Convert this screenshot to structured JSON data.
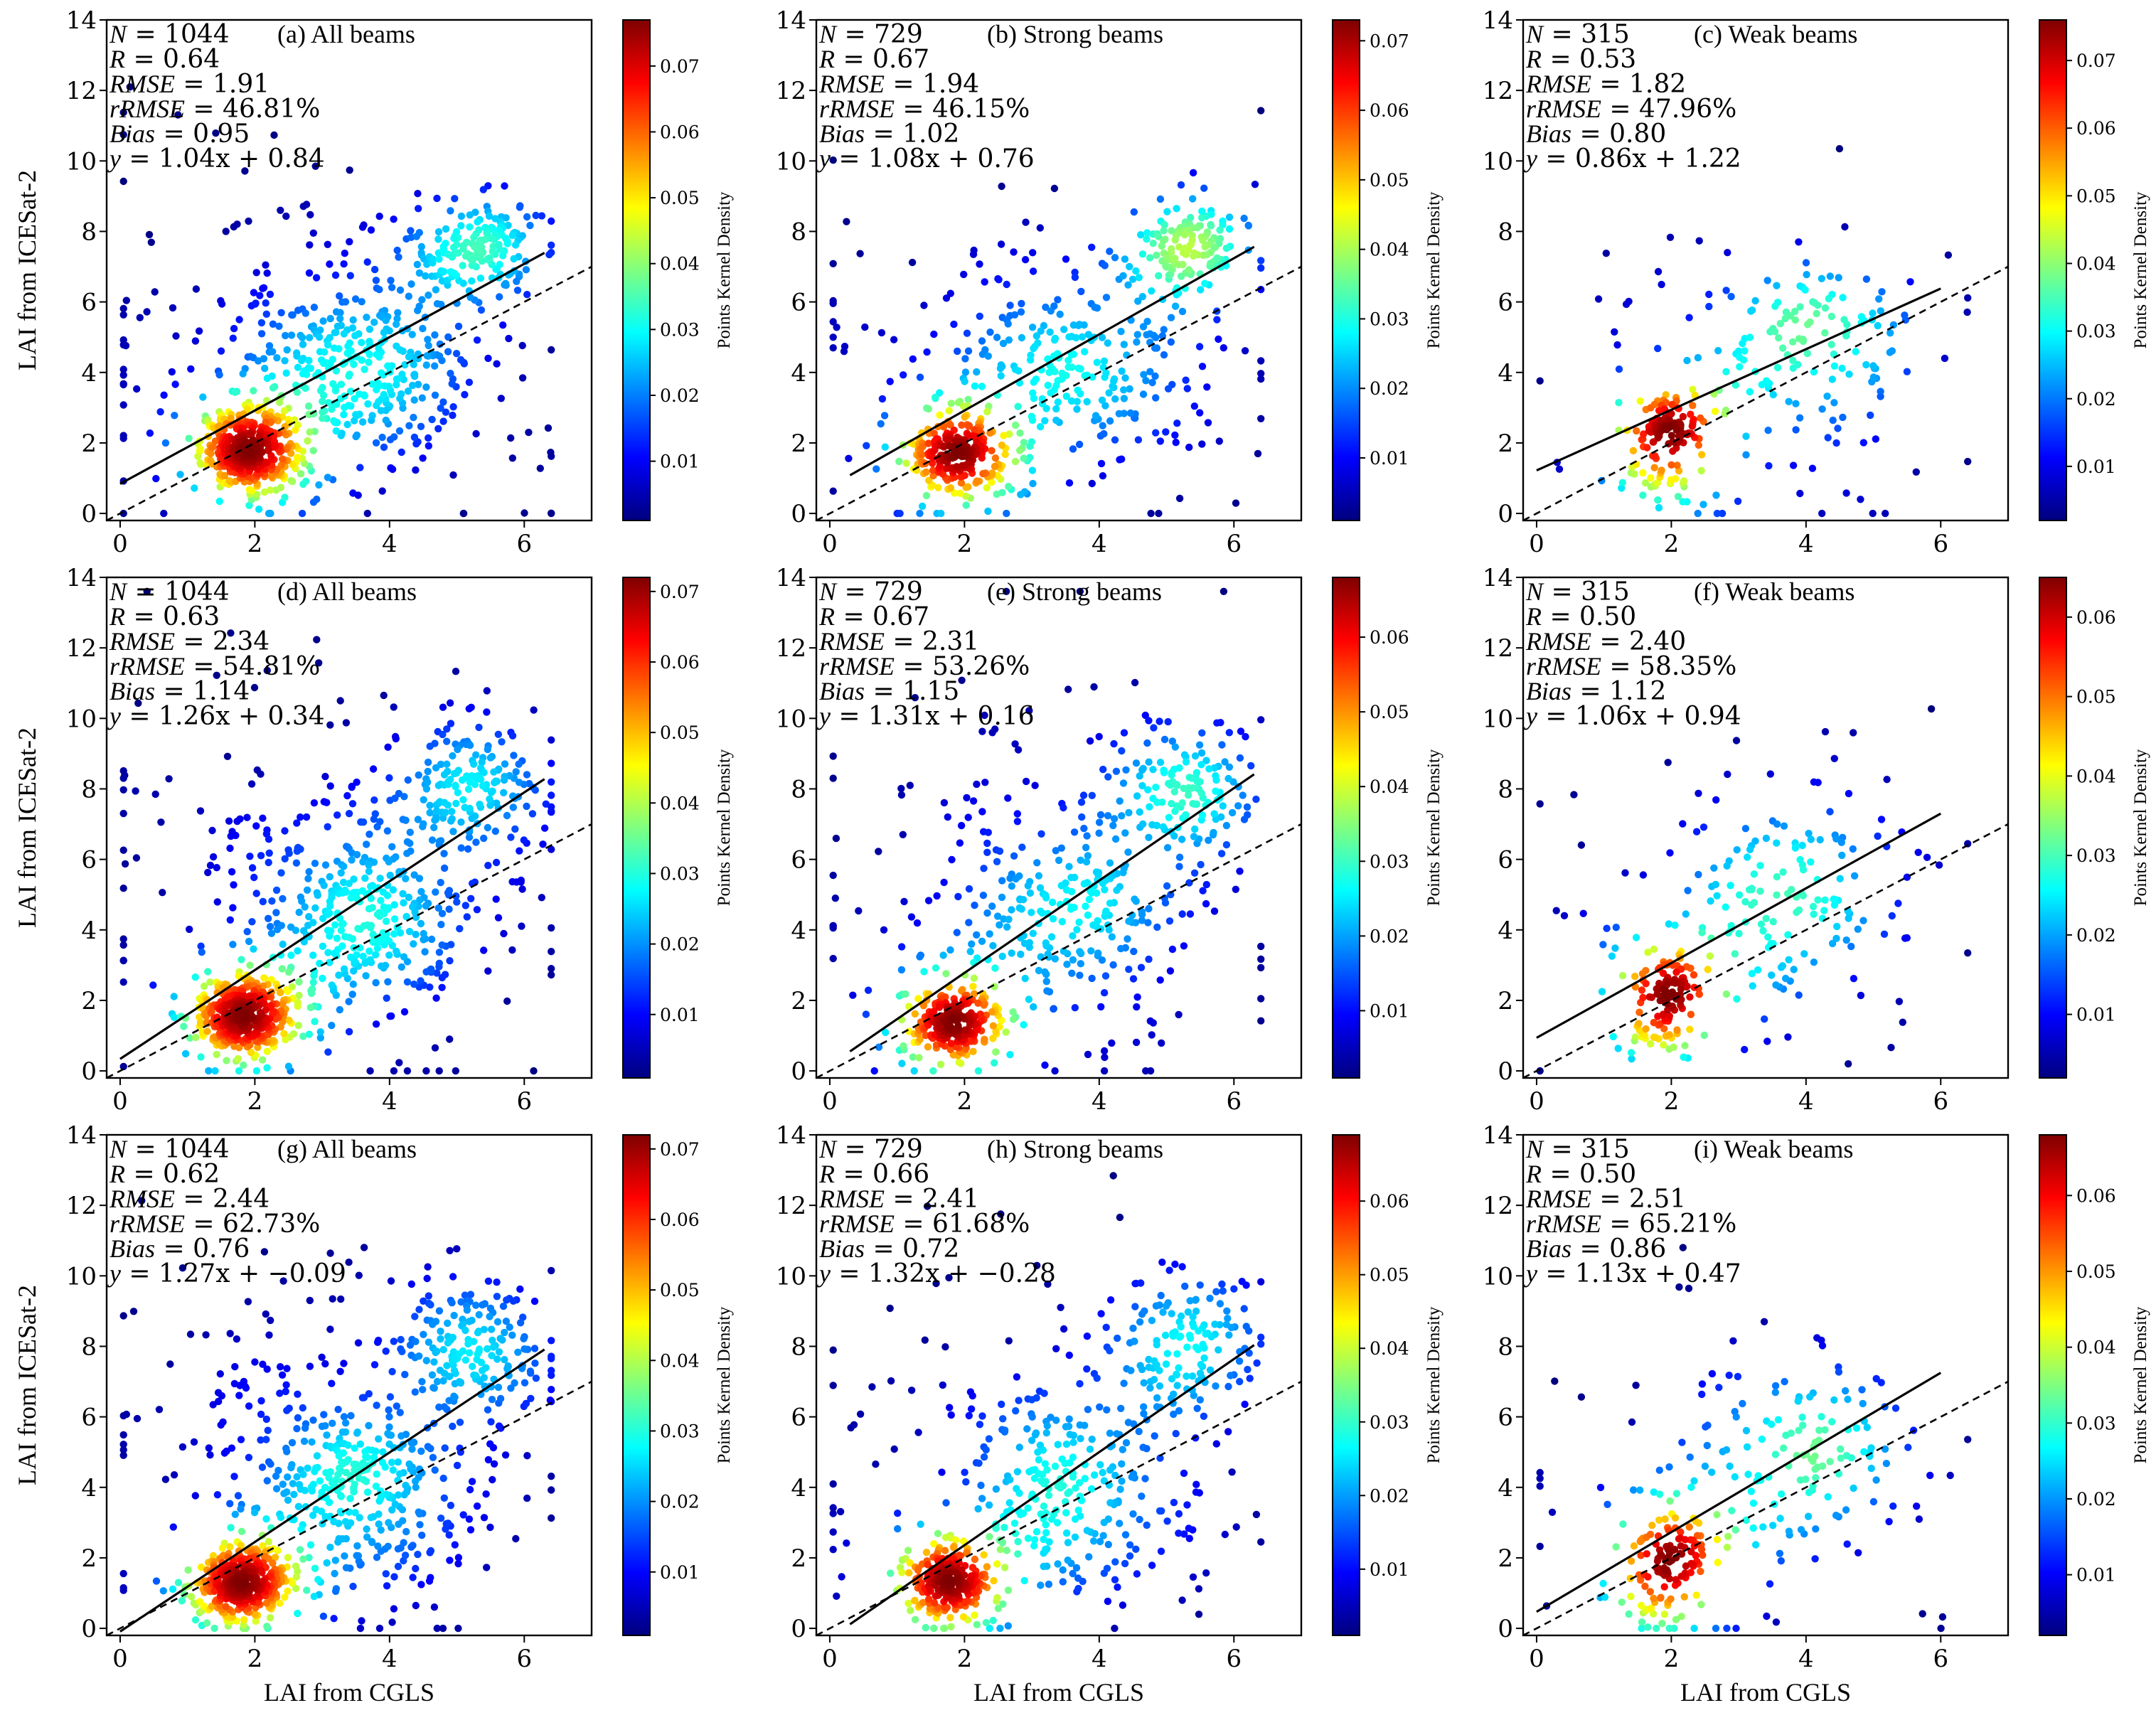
{
  "chart_data": [
    {
      "type": "scatter",
      "panel": "a",
      "title": "(a) All beams",
      "ylabel": "LAI from ICESat-2",
      "xlabel": "",
      "xlim": [
        -0.2,
        7
      ],
      "ylim": [
        -0.2,
        14
      ],
      "xticks": [
        "0",
        "2",
        "4",
        "6"
      ],
      "yticks": [
        "0",
        "2",
        "4",
        "6",
        "8",
        "10",
        "12",
        "14"
      ],
      "stats": {
        "n": "1044",
        "r": "0.64",
        "rmse": "1.91",
        "rrmse": "46.81%",
        "bias": "0.95",
        "equation": "1.04x + 0.84"
      },
      "fit": {
        "slope": 1.04,
        "intercept": 0.84,
        "x_range": [
          0,
          6.3
        ]
      },
      "colorbar": {
        "label": "Points Kernel Density",
        "ticks": [
          "0.01",
          "0.02",
          "0.03",
          "0.04",
          "0.05",
          "0.06",
          "0.07"
        ],
        "min": 0.001,
        "max": 0.077
      },
      "clusters": [
        {
          "cx": 1.9,
          "cy": 1.8,
          "sx": 0.35,
          "sy": 0.55,
          "n": 380
        },
        {
          "cx": 5.3,
          "cy": 7.5,
          "sx": 0.5,
          "sy": 0.7,
          "n": 170
        },
        {
          "cx": 3.6,
          "cy": 4.0,
          "sx": 0.9,
          "sy": 1.3,
          "n": 260
        },
        {
          "cx": 3.0,
          "cy": 4.5,
          "sx": 1.8,
          "sy": 2.6,
          "n": 234
        }
      ]
    },
    {
      "type": "scatter",
      "panel": "b",
      "title": "(b) Strong beams",
      "ylabel": "",
      "xlabel": "",
      "xlim": [
        -0.2,
        7
      ],
      "ylim": [
        -0.2,
        14
      ],
      "xticks": [
        "0",
        "2",
        "4",
        "6"
      ],
      "yticks": [
        "0",
        "2",
        "4",
        "6",
        "8",
        "10",
        "12",
        "14"
      ],
      "stats": {
        "n": "729",
        "r": "0.67",
        "rmse": "1.94",
        "rrmse": "46.15%",
        "bias": "1.02",
        "equation": "1.08x + 0.76"
      },
      "fit": {
        "slope": 1.08,
        "intercept": 0.76,
        "x_range": [
          0.3,
          6.3
        ]
      },
      "colorbar": {
        "label": "Points Kernel Density",
        "ticks": [
          "0.01",
          "0.02",
          "0.03",
          "0.04",
          "0.05",
          "0.06",
          "0.07"
        ],
        "min": 0.001,
        "max": 0.073
      },
      "clusters": [
        {
          "cx": 1.9,
          "cy": 1.7,
          "sx": 0.35,
          "sy": 0.55,
          "n": 250
        },
        {
          "cx": 5.4,
          "cy": 7.6,
          "sx": 0.45,
          "sy": 0.7,
          "n": 140
        },
        {
          "cx": 3.6,
          "cy": 4.2,
          "sx": 0.9,
          "sy": 1.3,
          "n": 180
        },
        {
          "cx": 3.0,
          "cy": 4.5,
          "sx": 1.8,
          "sy": 2.6,
          "n": 159
        }
      ]
    },
    {
      "type": "scatter",
      "panel": "c",
      "title": "(c) Weak beams",
      "ylabel": "",
      "xlabel": "",
      "xlim": [
        -0.2,
        7
      ],
      "ylim": [
        -0.2,
        14
      ],
      "xticks": [
        "0",
        "2",
        "4",
        "6"
      ],
      "yticks": [
        "0",
        "2",
        "4",
        "6",
        "8",
        "10",
        "12",
        "14"
      ],
      "stats": {
        "n": "315",
        "r": "0.53",
        "rmse": "1.82",
        "rrmse": "47.96%",
        "bias": "0.80",
        "equation": "0.86x + 1.22"
      },
      "fit": {
        "slope": 0.86,
        "intercept": 1.22,
        "x_range": [
          0,
          6
        ]
      },
      "colorbar": {
        "label": "Points Kernel Density",
        "ticks": [
          "0.01",
          "0.02",
          "0.03",
          "0.04",
          "0.05",
          "0.06",
          "0.07"
        ],
        "min": 0.002,
        "max": 0.076
      },
      "clusters": [
        {
          "cx": 2.0,
          "cy": 2.5,
          "sx": 0.25,
          "sy": 0.5,
          "n": 90
        },
        {
          "cx": 1.8,
          "cy": 1.0,
          "sx": 0.3,
          "sy": 0.5,
          "n": 40
        },
        {
          "cx": 4.0,
          "cy": 5.0,
          "sx": 0.8,
          "sy": 1.2,
          "n": 100
        },
        {
          "cx": 3.2,
          "cy": 4.0,
          "sx": 1.5,
          "sy": 2.3,
          "n": 85
        }
      ]
    },
    {
      "type": "scatter",
      "panel": "d",
      "title": "(d) All beams",
      "ylabel": "LAI from ICESat-2",
      "xlabel": "",
      "xlim": [
        -0.2,
        7
      ],
      "ylim": [
        -0.2,
        14
      ],
      "xticks": [
        "0",
        "2",
        "4",
        "6"
      ],
      "yticks": [
        "0",
        "2",
        "4",
        "6",
        "8",
        "10",
        "12",
        "14"
      ],
      "stats": {
        "n": "1044",
        "r": "0.63",
        "rmse": "2.34",
        "rrmse": "54.81%",
        "bias": "1.14",
        "equation": "1.26x + 0.34"
      },
      "fit": {
        "slope": 1.26,
        "intercept": 0.34,
        "x_range": [
          0,
          6.3
        ]
      },
      "colorbar": {
        "label": "Points Kernel Density",
        "ticks": [
          "0.01",
          "0.02",
          "0.03",
          "0.04",
          "0.05",
          "0.06",
          "0.07"
        ],
        "min": 0.001,
        "max": 0.072
      },
      "clusters": [
        {
          "cx": 1.8,
          "cy": 1.5,
          "sx": 0.35,
          "sy": 0.55,
          "n": 380
        },
        {
          "cx": 5.2,
          "cy": 8.0,
          "sx": 0.6,
          "sy": 1.0,
          "n": 170
        },
        {
          "cx": 3.6,
          "cy": 4.3,
          "sx": 0.9,
          "sy": 1.5,
          "n": 260
        },
        {
          "cx": 3.0,
          "cy": 5.0,
          "sx": 1.8,
          "sy": 2.8,
          "n": 234
        }
      ]
    },
    {
      "type": "scatter",
      "panel": "e",
      "title": "(e) Strong beams",
      "ylabel": "",
      "xlabel": "",
      "xlim": [
        -0.2,
        7
      ],
      "ylim": [
        -0.2,
        14
      ],
      "xticks": [
        "0",
        "2",
        "4",
        "6"
      ],
      "yticks": [
        "0",
        "2",
        "4",
        "6",
        "8",
        "10",
        "12",
        "14"
      ],
      "stats": {
        "n": "729",
        "r": "0.67",
        "rmse": "2.31",
        "rrmse": "53.26%",
        "bias": "1.15",
        "equation": "1.31x + 0.16"
      },
      "fit": {
        "slope": 1.31,
        "intercept": 0.16,
        "x_range": [
          0.3,
          6.3
        ]
      },
      "colorbar": {
        "label": "Points Kernel Density",
        "ticks": [
          "0.01",
          "0.02",
          "0.03",
          "0.04",
          "0.05",
          "0.06"
        ],
        "min": 0.001,
        "max": 0.068
      },
      "clusters": [
        {
          "cx": 1.8,
          "cy": 1.4,
          "sx": 0.35,
          "sy": 0.55,
          "n": 250
        },
        {
          "cx": 5.3,
          "cy": 8.0,
          "sx": 0.55,
          "sy": 1.0,
          "n": 140
        },
        {
          "cx": 3.6,
          "cy": 4.3,
          "sx": 0.9,
          "sy": 1.5,
          "n": 180
        },
        {
          "cx": 3.0,
          "cy": 5.0,
          "sx": 1.8,
          "sy": 2.8,
          "n": 159
        }
      ]
    },
    {
      "type": "scatter",
      "panel": "f",
      "title": "(f) Weak beams",
      "ylabel": "",
      "xlabel": "",
      "xlim": [
        -0.2,
        7
      ],
      "ylim": [
        -0.2,
        14
      ],
      "xticks": [
        "0",
        "2",
        "4",
        "6"
      ],
      "yticks": [
        "0",
        "2",
        "4",
        "6",
        "8",
        "10",
        "12",
        "14"
      ],
      "stats": {
        "n": "315",
        "r": "0.50",
        "rmse": "2.40",
        "rrmse": "58.35%",
        "bias": "1.12",
        "equation": "1.06x + 0.94"
      },
      "fit": {
        "slope": 1.06,
        "intercept": 0.94,
        "x_range": [
          0,
          6
        ]
      },
      "colorbar": {
        "label": "Points Kernel Density",
        "ticks": [
          "0.01",
          "0.02",
          "0.03",
          "0.04",
          "0.05",
          "0.06"
        ],
        "min": 0.002,
        "max": 0.065
      },
      "clusters": [
        {
          "cx": 2.0,
          "cy": 2.4,
          "sx": 0.25,
          "sy": 0.5,
          "n": 90
        },
        {
          "cx": 1.8,
          "cy": 0.9,
          "sx": 0.3,
          "sy": 0.5,
          "n": 40
        },
        {
          "cx": 4.0,
          "cy": 5.0,
          "sx": 0.8,
          "sy": 1.5,
          "n": 100
        },
        {
          "cx": 3.2,
          "cy": 4.5,
          "sx": 1.5,
          "sy": 2.6,
          "n": 85
        }
      ]
    },
    {
      "type": "scatter",
      "panel": "g",
      "title": "(g) All beams",
      "ylabel": "LAI from ICESat-2",
      "xlabel": "LAI from CGLS",
      "xlim": [
        -0.2,
        7
      ],
      "ylim": [
        -0.2,
        14
      ],
      "xticks": [
        "0",
        "2",
        "4",
        "6"
      ],
      "yticks": [
        "0",
        "2",
        "4",
        "6",
        "8",
        "10",
        "12",
        "14"
      ],
      "stats": {
        "n": "1044",
        "r": "0.62",
        "rmse": "2.44",
        "rrmse": "62.73%",
        "bias": "0.76",
        "equation": "1.27x + −0.09"
      },
      "fit": {
        "slope": 1.27,
        "intercept": -0.09,
        "x_range": [
          0,
          6.3
        ]
      },
      "colorbar": {
        "label": "Points Kernel Density",
        "ticks": [
          "0.01",
          "0.02",
          "0.03",
          "0.04",
          "0.05",
          "0.06",
          "0.07"
        ],
        "min": 0.001,
        "max": 0.072
      },
      "clusters": [
        {
          "cx": 1.8,
          "cy": 1.3,
          "sx": 0.35,
          "sy": 0.55,
          "n": 380
        },
        {
          "cx": 5.3,
          "cy": 8.0,
          "sx": 0.6,
          "sy": 1.0,
          "n": 170
        },
        {
          "cx": 3.6,
          "cy": 4.0,
          "sx": 0.9,
          "sy": 1.5,
          "n": 260
        },
        {
          "cx": 3.0,
          "cy": 4.6,
          "sx": 1.8,
          "sy": 2.8,
          "n": 234
        }
      ]
    },
    {
      "type": "scatter",
      "panel": "h",
      "title": "(h) Strong beams",
      "ylabel": "",
      "xlabel": "LAI from CGLS",
      "xlim": [
        -0.2,
        7
      ],
      "ylim": [
        -0.2,
        14
      ],
      "xticks": [
        "0",
        "2",
        "4",
        "6"
      ],
      "yticks": [
        "0",
        "2",
        "4",
        "6",
        "8",
        "10",
        "12",
        "14"
      ],
      "stats": {
        "n": "729",
        "r": "0.66",
        "rmse": "2.41",
        "rrmse": "61.68%",
        "bias": "0.72",
        "equation": "1.32x + −0.28"
      },
      "fit": {
        "slope": 1.32,
        "intercept": -0.28,
        "x_range": [
          0.3,
          6.3
        ]
      },
      "colorbar": {
        "label": "Points Kernel Density",
        "ticks": [
          "0.01",
          "0.02",
          "0.03",
          "0.04",
          "0.05",
          "0.06"
        ],
        "min": 0.001,
        "max": 0.069
      },
      "clusters": [
        {
          "cx": 1.8,
          "cy": 1.2,
          "sx": 0.35,
          "sy": 0.55,
          "n": 250
        },
        {
          "cx": 5.3,
          "cy": 8.0,
          "sx": 0.55,
          "sy": 1.0,
          "n": 140
        },
        {
          "cx": 3.6,
          "cy": 4.0,
          "sx": 0.9,
          "sy": 1.5,
          "n": 180
        },
        {
          "cx": 3.0,
          "cy": 4.6,
          "sx": 1.8,
          "sy": 2.8,
          "n": 159
        }
      ]
    },
    {
      "type": "scatter",
      "panel": "i",
      "title": "(i) Weak beams",
      "ylabel": "",
      "xlabel": "LAI from CGLS",
      "xlim": [
        -0.2,
        7
      ],
      "ylim": [
        -0.2,
        14
      ],
      "xticks": [
        "0",
        "2",
        "4",
        "6"
      ],
      "yticks": [
        "0",
        "2",
        "4",
        "6",
        "8",
        "10",
        "12",
        "14"
      ],
      "stats": {
        "n": "315",
        "r": "0.50",
        "rmse": "2.51",
        "rrmse": "65.21%",
        "bias": "0.86",
        "equation": "1.13x + 0.47"
      },
      "fit": {
        "slope": 1.13,
        "intercept": 0.47,
        "x_range": [
          0,
          6
        ]
      },
      "colorbar": {
        "label": "Points Kernel Density",
        "ticks": [
          "0.01",
          "0.02",
          "0.03",
          "0.04",
          "0.05",
          "0.06"
        ],
        "min": 0.002,
        "max": 0.068
      },
      "clusters": [
        {
          "cx": 2.0,
          "cy": 2.1,
          "sx": 0.25,
          "sy": 0.5,
          "n": 90
        },
        {
          "cx": 1.8,
          "cy": 0.8,
          "sx": 0.3,
          "sy": 0.5,
          "n": 40
        },
        {
          "cx": 4.0,
          "cy": 5.0,
          "sx": 0.8,
          "sy": 1.5,
          "n": 100
        },
        {
          "cx": 3.2,
          "cy": 4.5,
          "sx": 1.5,
          "sy": 2.6,
          "n": 85
        }
      ]
    }
  ],
  "reference_line": "1:1",
  "colormap": [
    "#00007f",
    "#0000ff",
    "#007fff",
    "#00ffff",
    "#7fff7f",
    "#ffff00",
    "#ff7f00",
    "#ff0000",
    "#7f0000"
  ],
  "stat_labels": {
    "n": "N",
    "r": "R",
    "rmse": "RMSE",
    "rrmse": "rRMSE",
    "bias": "Bias",
    "y": "y"
  }
}
